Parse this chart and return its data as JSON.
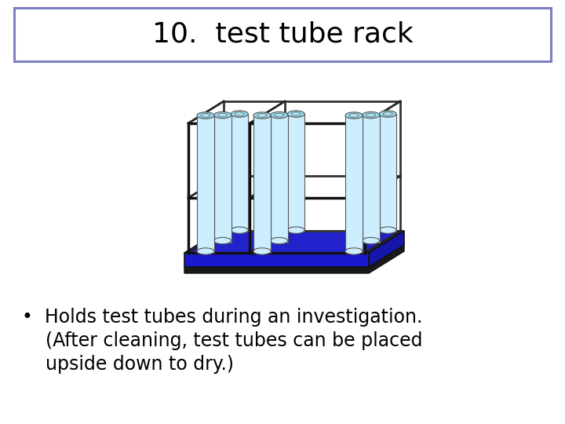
{
  "title": "10.  test tube rack",
  "title_box_color": "#7b7fc4",
  "title_fontsize": 26,
  "bg_color": "#ffffff",
  "bullet_line1": "•  Holds test tubes during an investigation.",
  "bullet_line2": "    (After cleaning, test tubes can be placed",
  "bullet_line3": "    upside down to dry.)",
  "bullet_fontsize": 17,
  "text_color": "#000000",
  "rack_base_color": "#2222cc",
  "rack_shadow_color": "#1a1a2e",
  "tube_body_color": "#cceeff",
  "tube_top_color": "#99ddee",
  "tube_outline": "#555555",
  "frame_color": "#111111",
  "liquid_cyan": "#00ccff",
  "liquid_pink": "#dd00cc",
  "liquid_green": "#55ee00"
}
